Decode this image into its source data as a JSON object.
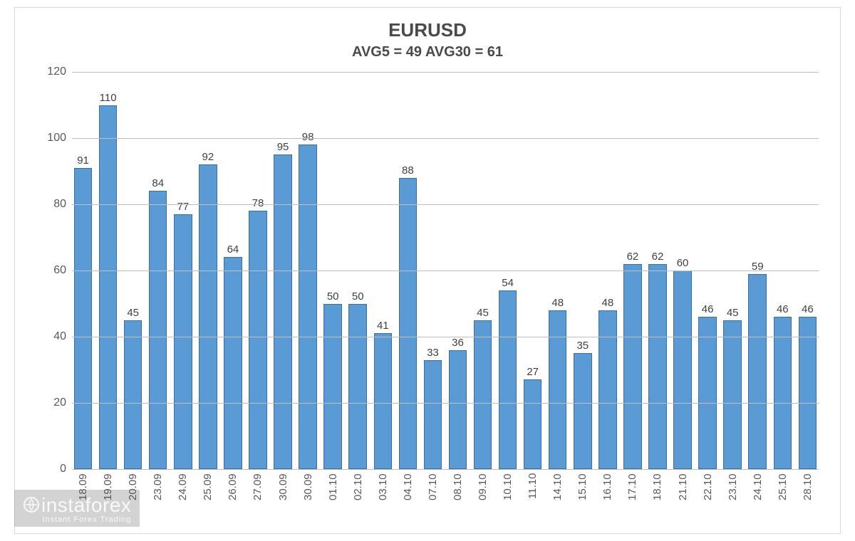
{
  "chart": {
    "type": "bar",
    "title": "EURUSD",
    "subtitle": "AVG5 = 49 AVG30 = 61",
    "title_fontsize": 26,
    "subtitle_fontsize": 20,
    "title_color": "#4a4a4a",
    "categories": [
      "18.09",
      "19.09",
      "20.09",
      "23.09",
      "24.09",
      "25.09",
      "26.09",
      "27.09",
      "30.09",
      "30.09",
      "01.10",
      "02.10",
      "03.10",
      "04.10",
      "07.10",
      "08.10",
      "09.10",
      "10.10",
      "11.10",
      "14.10",
      "15.10",
      "16.10",
      "17.10",
      "18.10",
      "21.10",
      "22.10",
      "23.10",
      "24.10",
      "25.10",
      "28.10"
    ],
    "values": [
      91,
      110,
      45,
      84,
      77,
      92,
      64,
      78,
      95,
      98,
      50,
      50,
      41,
      88,
      33,
      36,
      45,
      54,
      27,
      48,
      35,
      48,
      62,
      62,
      60,
      46,
      45,
      59,
      46,
      46
    ],
    "bar_color": "#5b9bd5",
    "bar_border_color": "#3b6fa0",
    "bar_width_pct": 82,
    "value_label_fontsize": 15,
    "axis_label_fontsize": 16,
    "xaxis_label_fontsize": 15,
    "axis_label_color": "#595959",
    "ylim": [
      0,
      120
    ],
    "ytick_step": 20,
    "grid_color": "#bfbfbf",
    "background_color": "#ffffff",
    "border_color": "#d9d9d9"
  },
  "watermark": {
    "main": "instaforex",
    "sub": "Instant Forex Trading"
  }
}
